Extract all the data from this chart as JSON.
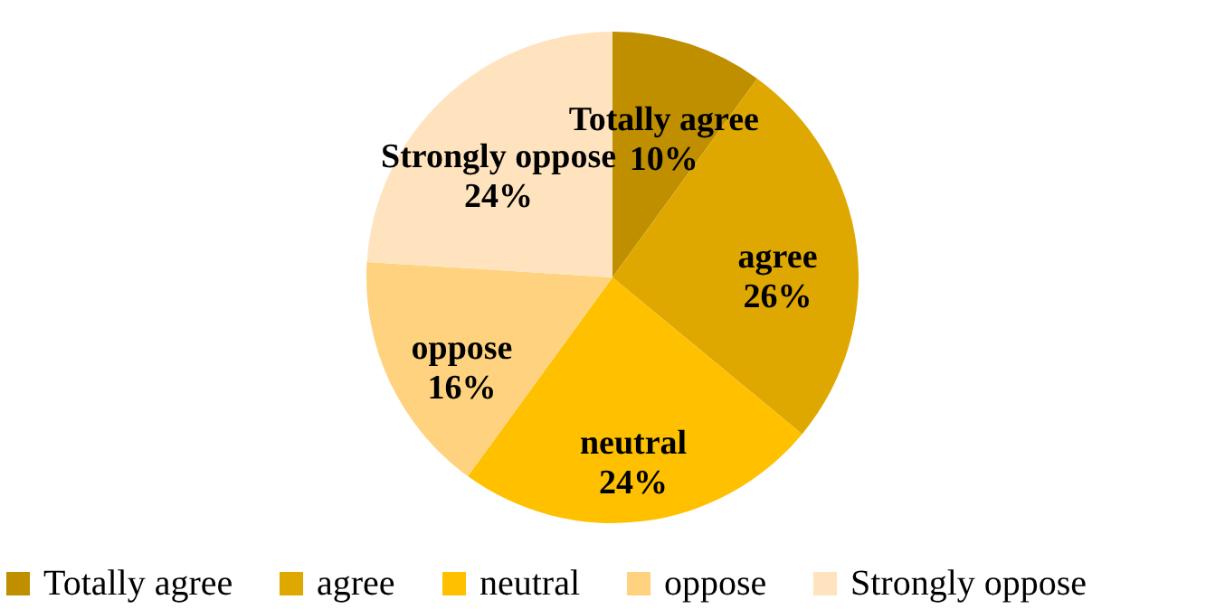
{
  "chart_data": {
    "type": "pie",
    "categories": [
      "Totally agree",
      "agree",
      "neutral",
      "oppose",
      "Strongly oppose"
    ],
    "values": [
      10,
      26,
      24,
      16,
      24
    ],
    "colors": [
      "#bf8f00",
      "#dfa800",
      "#ffc000",
      "#ffd27f",
      "#ffe3bf"
    ],
    "value_labels": [
      "10%",
      "26%",
      "24%",
      "16%",
      "24%"
    ],
    "legend": "bottom"
  }
}
